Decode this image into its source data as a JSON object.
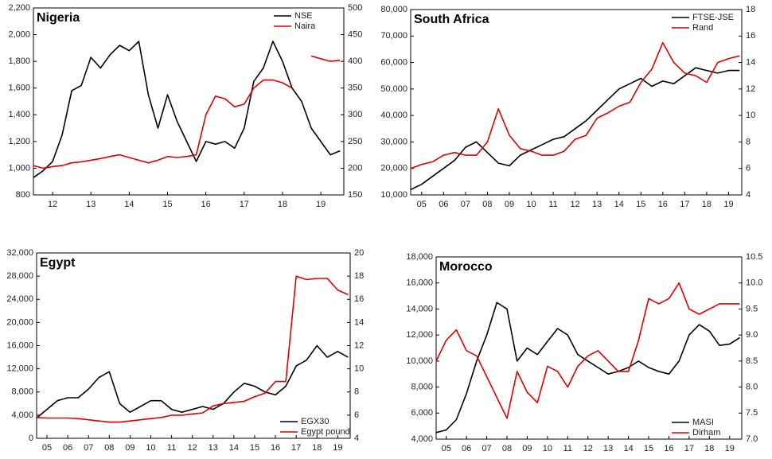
{
  "chart_data": [
    {
      "type": "line",
      "title": "Nigeria",
      "legend": "upper right",
      "grid": false,
      "x": [
        11.5,
        11.75,
        12,
        12.25,
        12.5,
        12.75,
        13,
        13.25,
        13.5,
        13.75,
        14,
        14.25,
        14.5,
        14.75,
        15,
        15.25,
        15.5,
        15.75,
        16,
        16.25,
        16.5,
        16.75,
        17,
        17.25,
        17.5,
        17.75,
        18,
        18.25,
        18.5,
        18.75,
        19,
        19.25,
        19.5
      ],
      "xlim": [
        11.5,
        19.6
      ],
      "xticks": [
        12,
        13,
        14,
        15,
        16,
        17,
        18,
        19
      ],
      "ylim": [
        800,
        2200
      ],
      "yticks": [
        800,
        {
          "value": 1000,
          "label": "1,000"
        },
        {
          "value": 1200,
          "label": "1,200"
        },
        {
          "value": 1400,
          "label": "1,400"
        },
        {
          "value": 1600,
          "label": "1,600"
        },
        {
          "value": 1800,
          "label": "1,800"
        },
        {
          "value": 2000,
          "label": "2,000"
        },
        {
          "value": 2200,
          "label": "2,200"
        }
      ],
      "y2lim": [
        150,
        500
      ],
      "y2ticks": [
        150,
        200,
        250,
        300,
        350,
        400,
        450,
        500
      ],
      "series": [
        {
          "name": "NSE",
          "color": "#000000",
          "values": [
            930,
            980,
            1050,
            1250,
            1580,
            1620,
            1830,
            1750,
            1850,
            1920,
            1880,
            1950,
            1550,
            1300,
            1550,
            1350,
            1200,
            1050,
            1200,
            1180,
            1200,
            1150,
            1300,
            1650,
            1750,
            1950,
            1800,
            1600,
            1500,
            1300,
            1200,
            1100,
            1130
          ]
        },
        {
          "name": "Naira",
          "color": "#e00000",
          "axis": "y2",
          "values": [
            205,
            200,
            203,
            205,
            210,
            212,
            215,
            218,
            222,
            225,
            220,
            215,
            210,
            215,
            222,
            220,
            222,
            225,
            300,
            335,
            330,
            315,
            320,
            350,
            365,
            365,
            360,
            350,
            null,
            410,
            405,
            400,
            402
          ]
        }
      ]
    },
    {
      "type": "line",
      "title": "South Africa",
      "legend": "upper right",
      "grid": false,
      "x": [
        4.5,
        5,
        5.5,
        6,
        6.5,
        7,
        7.5,
        8,
        8.5,
        9,
        9.5,
        10,
        10.5,
        11,
        11.5,
        12,
        12.5,
        13,
        13.5,
        14,
        14.5,
        15,
        15.5,
        16,
        16.5,
        17,
        17.5,
        18,
        18.5,
        19,
        19.5
      ],
      "xlim": [
        4.5,
        19.6
      ],
      "xticks": [
        {
          "value": 5,
          "label": "05"
        },
        {
          "value": 6,
          "label": "06"
        },
        {
          "value": 7,
          "label": "07"
        },
        {
          "value": 8,
          "label": "08"
        },
        {
          "value": 9,
          "label": "09"
        },
        10,
        11,
        12,
        13,
        14,
        15,
        16,
        17,
        18,
        19
      ],
      "ylim": [
        10000,
        80000
      ],
      "yticks": [
        {
          "value": 10000,
          "label": "10,000"
        },
        {
          "value": 20000,
          "label": "20,000"
        },
        {
          "value": 30000,
          "label": "30,000"
        },
        {
          "value": 40000,
          "label": "40,000"
        },
        {
          "value": 50000,
          "label": "50,000"
        },
        {
          "value": 60000,
          "label": "60,000"
        },
        {
          "value": 70000,
          "label": "70,000"
        },
        {
          "value": 80000,
          "label": "80,000"
        }
      ],
      "y2lim": [
        4,
        18
      ],
      "y2ticks": [
        4,
        6,
        8,
        10,
        12,
        14,
        16,
        18
      ],
      "series": [
        {
          "name": "FTSE-JSE",
          "color": "#000000",
          "values": [
            12000,
            14000,
            17000,
            20000,
            23000,
            28000,
            30000,
            26000,
            22000,
            21000,
            25000,
            27000,
            29000,
            31000,
            32000,
            35000,
            38000,
            42000,
            46000,
            50000,
            52000,
            54000,
            51000,
            53000,
            52000,
            55000,
            58000,
            57000,
            56000,
            57000,
            57000
          ]
        },
        {
          "name": "Rand",
          "color": "#e00000",
          "axis": "y2",
          "values": [
            6,
            6.3,
            6.5,
            7,
            7.2,
            7,
            7,
            8,
            10.5,
            8.5,
            7.5,
            7.3,
            7,
            7,
            7.3,
            8.2,
            8.5,
            9.8,
            10.2,
            10.7,
            11,
            12.5,
            13.5,
            15.5,
            14,
            13.2,
            13,
            12.5,
            14,
            14.3,
            14.5
          ]
        }
      ]
    },
    {
      "type": "line",
      "title": "Egypt",
      "legend": "lower right",
      "grid": false,
      "x": [
        4.5,
        5,
        5.5,
        6,
        6.5,
        7,
        7.5,
        8,
        8.5,
        9,
        9.5,
        10,
        10.5,
        11,
        11.5,
        12,
        12.5,
        13,
        13.5,
        14,
        14.5,
        15,
        15.5,
        16,
        16.5,
        17,
        17.5,
        18,
        18.5,
        19,
        19.5
      ],
      "xlim": [
        4.5,
        19.6
      ],
      "xticks": [
        {
          "value": 5,
          "label": "05"
        },
        {
          "value": 6,
          "label": "06"
        },
        {
          "value": 7,
          "label": "07"
        },
        {
          "value": 8,
          "label": "08"
        },
        {
          "value": 9,
          "label": "09"
        },
        10,
        11,
        12,
        13,
        14,
        15,
        16,
        17,
        18,
        19
      ],
      "ylim": [
        0,
        32000
      ],
      "yticks": [
        0,
        {
          "value": 4000,
          "label": "4,000"
        },
        {
          "value": 8000,
          "label": "8,000"
        },
        {
          "value": 12000,
          "label": "12,000"
        },
        {
          "value": 16000,
          "label": "16,000"
        },
        {
          "value": 20000,
          "label": "20,000"
        },
        {
          "value": 24000,
          "label": "24,000"
        },
        {
          "value": 28000,
          "label": "28,000"
        },
        {
          "value": 32000,
          "label": "32,000"
        }
      ],
      "y2lim": [
        4,
        20
      ],
      "y2ticks": [
        4,
        6,
        8,
        10,
        12,
        14,
        16,
        18,
        20
      ],
      "series": [
        {
          "name": "EGX30",
          "color": "#000000",
          "values": [
            3500,
            5000,
            6500,
            7000,
            7000,
            8500,
            10500,
            11500,
            6000,
            4500,
            5500,
            6500,
            6500,
            5000,
            4500,
            5000,
            5500,
            5000,
            6000,
            8000,
            9500,
            9000,
            8000,
            7500,
            9000,
            12500,
            13500,
            16000,
            14000,
            15000,
            14000
          ]
        },
        {
          "name": "Egypt pound",
          "color": "#e00000",
          "axis": "y2",
          "values": [
            5.8,
            5.75,
            5.75,
            5.75,
            5.7,
            5.6,
            5.5,
            5.4,
            5.4,
            5.5,
            5.6,
            5.7,
            5.8,
            6.0,
            6.0,
            6.1,
            6.2,
            6.8,
            7.0,
            7.1,
            7.2,
            7.6,
            7.9,
            8.9,
            8.9,
            18.0,
            17.7,
            17.8,
            17.8,
            16.8,
            16.4
          ]
        }
      ]
    },
    {
      "type": "line",
      "title": "Morocco",
      "legend": "lower right",
      "grid": false,
      "x": [
        4.5,
        5,
        5.5,
        6,
        6.5,
        7,
        7.5,
        8,
        8.5,
        9,
        9.5,
        10,
        10.5,
        11,
        11.5,
        12,
        12.5,
        13,
        13.5,
        14,
        14.5,
        15,
        15.5,
        16,
        16.5,
        17,
        17.5,
        18,
        18.5,
        19,
        19.5
      ],
      "xlim": [
        4.5,
        19.6
      ],
      "xticks": [
        {
          "value": 5,
          "label": "05"
        },
        {
          "value": 6,
          "label": "06"
        },
        {
          "value": 7,
          "label": "07"
        },
        {
          "value": 8,
          "label": "08"
        },
        {
          "value": 9,
          "label": "09"
        },
        10,
        11,
        12,
        13,
        14,
        15,
        16,
        17,
        18,
        19
      ],
      "ylim": [
        4000,
        18000
      ],
      "yticks": [
        {
          "value": 4000,
          "label": "4,000"
        },
        {
          "value": 6000,
          "label": "6,000"
        },
        {
          "value": 8000,
          "label": "8,000"
        },
        {
          "value": 10000,
          "label": "10,000"
        },
        {
          "value": 12000,
          "label": "12,000"
        },
        {
          "value": 14000,
          "label": "14,000"
        },
        {
          "value": 16000,
          "label": "16,000"
        },
        {
          "value": 18000,
          "label": "18,000"
        }
      ],
      "y2lim": [
        7,
        10.5
      ],
      "y2ticks": [
        {
          "value": 7,
          "label": "7.0"
        },
        7.5,
        {
          "value": 8,
          "label": "8.0"
        },
        8.5,
        {
          "value": 9,
          "label": "9.0"
        },
        9.5,
        {
          "value": 10,
          "label": "10.0"
        },
        10.5
      ],
      "series": [
        {
          "name": "MASI",
          "color": "#000000",
          "values": [
            4500,
            4700,
            5500,
            7500,
            10000,
            12000,
            14500,
            14000,
            10000,
            11000,
            10500,
            11500,
            12500,
            12000,
            10500,
            10000,
            9500,
            9000,
            9200,
            9500,
            10000,
            9500,
            9200,
            9000,
            10000,
            12000,
            12800,
            12300,
            11200,
            11300,
            11800
          ]
        },
        {
          "name": "Dirham",
          "color": "#e00000",
          "axis": "y2",
          "values": [
            8.5,
            8.9,
            9.1,
            8.7,
            8.6,
            8.2,
            7.8,
            7.4,
            8.3,
            7.9,
            7.7,
            8.4,
            8.3,
            8.0,
            8.4,
            8.6,
            8.7,
            8.5,
            8.3,
            8.3,
            8.9,
            9.7,
            9.6,
            9.7,
            10.0,
            9.5,
            9.4,
            9.5,
            9.6,
            9.6,
            9.6
          ]
        }
      ]
    }
  ]
}
